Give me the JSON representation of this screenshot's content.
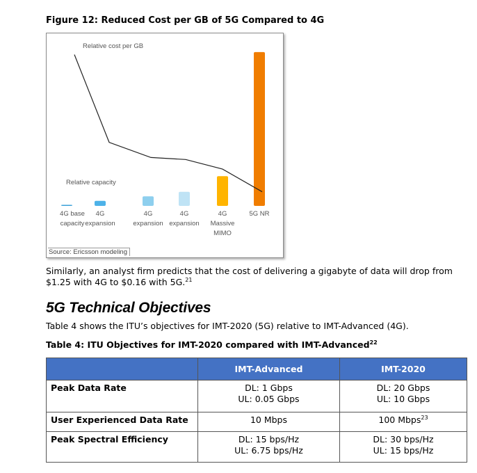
{
  "figure": {
    "title": "Figure 12: Reduced Cost per GB of 5G Compared to 4G",
    "source": "Source: Ericsson modeling"
  },
  "chart_data": {
    "type": "bar",
    "title": "Reduced Cost per GB of 5G Compared to 4G",
    "categories": [
      [
        "4G base",
        "capacity"
      ],
      [
        "4G",
        "expansion"
      ],
      [
        "4G",
        "expansion"
      ],
      [
        "4G",
        "expansion"
      ],
      [
        "4G",
        "Massive",
        "MIMO"
      ],
      [
        "5G NR"
      ]
    ],
    "series": [
      {
        "name": "Relative capacity",
        "values": [
          2,
          10,
          19,
          28,
          59,
          305
        ],
        "colors": [
          "#3aa0d8",
          "#4db2e8",
          "#8ecfee",
          "#bfe3f5",
          "#ffb400",
          "#f07d00"
        ]
      },
      {
        "name": "Relative cost per GB",
        "type": "line",
        "values": [
          300,
          126,
          96,
          92,
          73,
          28
        ],
        "color": "#222222"
      }
    ],
    "labels": {
      "cost": "Relative cost per GB",
      "capacity": "Relative capacity"
    },
    "ylim": [
      0,
      320
    ],
    "xlabel": "",
    "ylabel": ""
  },
  "paragraph": {
    "text": "Similarly, an analyst firm predicts that the cost of delivering a gigabyte of data will drop from $1.25 with 4G to $0.16 with 5G.",
    "footnote": "21"
  },
  "section": {
    "heading": "5G Technical Objectives",
    "intro": "Table 4 shows the ITU’s objectives for IMT-2020 (5G) relative to IMT-Advanced (4G)."
  },
  "table": {
    "title": "Table 4: ITU Objectives for IMT-2020 compared with IMT-Advanced",
    "title_footnote": "22",
    "headers": [
      "",
      "IMT-Advanced",
      "IMT-2020"
    ],
    "rows": [
      {
        "label": "Peak Data Rate",
        "adv": [
          "DL: 1 Gbps",
          "UL: 0.05 Gbps"
        ],
        "imt": [
          "DL: 20 Gbps",
          "UL: 10 Gbps"
        ]
      },
      {
        "label": "User Experienced Data Rate",
        "adv": [
          "10 Mbps"
        ],
        "imt": [
          "100 Mbps"
        ],
        "imt_footnote": "23"
      },
      {
        "label": "Peak Spectral Efficiency",
        "adv": [
          "DL: 15 bps/Hz",
          "UL: 6.75 bps/Hz"
        ],
        "imt": [
          "DL: 30 bps/Hz",
          "UL: 15 bps/Hz"
        ]
      }
    ]
  },
  "colors": {
    "header_bg": "#4472c4",
    "header_text": "#ffffff"
  }
}
